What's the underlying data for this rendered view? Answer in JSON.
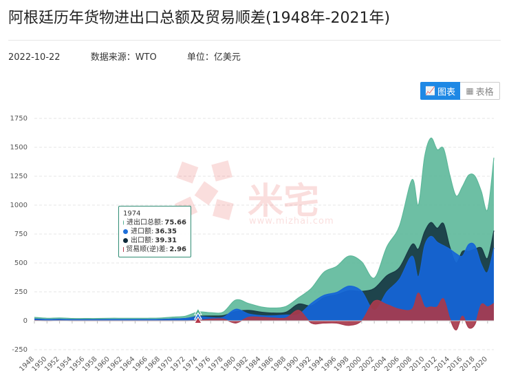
{
  "header": {
    "title": "阿根廷历年货物进出口总额及贸易顺差(1948年-2021年)",
    "date": "2022-10-22",
    "source": "数据来源：WTO",
    "unit": "单位：亿美元"
  },
  "toggle": {
    "chart_label": "图表",
    "table_label": "表格"
  },
  "watermark": {
    "text": "米宅",
    "url": "www.mizhai.com"
  },
  "tooltip": {
    "year": "1974",
    "rows": [
      {
        "label": "进出口总额",
        "value": "75.66",
        "color": "#4cae8e"
      },
      {
        "label": "进口额",
        "value": "36.35",
        "color": "#1e6fd9"
      },
      {
        "label": "出口额",
        "value": "39.31",
        "color": "#0f2a3a"
      },
      {
        "label": "贸易顺(逆)差",
        "value": "2.96",
        "color": "#b5384a"
      }
    ]
  },
  "colors": {
    "total": "#5db89a",
    "imports": "#1565d8",
    "exports": "#183a44",
    "balance": "#a83a4c"
  },
  "chart_data": {
    "type": "area",
    "title": "阿根廷历年货物进出口总额及贸易顺差(1948年-2021年)",
    "ylim": [
      -250,
      1750
    ],
    "yticks": [
      -250,
      0,
      250,
      500,
      750,
      1000,
      1250,
      1500,
      1750
    ],
    "xlabels": [
      "1948",
      "1950",
      "1952",
      "1954",
      "1956",
      "1958",
      "1960",
      "1962",
      "1964",
      "1966",
      "1968",
      "1970",
      "1972",
      "1974",
      "1976",
      "1978",
      "1980",
      "1982",
      "1984",
      "1986",
      "1988",
      "1990",
      "1992",
      "1994",
      "1996",
      "1998",
      "2000",
      "2002",
      "2004",
      "2006",
      "2008",
      "2010",
      "2012",
      "2014",
      "2016",
      "2018",
      "2020"
    ],
    "x": [
      1948,
      1950,
      1952,
      1954,
      1956,
      1958,
      1960,
      1962,
      1964,
      1966,
      1968,
      1970,
      1972,
      1974,
      1976,
      1978,
      1980,
      1982,
      1984,
      1986,
      1988,
      1990,
      1992,
      1994,
      1996,
      1998,
      2000,
      2002,
      2004,
      2006,
      2008,
      2009,
      2010,
      2011,
      2012,
      2013,
      2014,
      2015,
      2016,
      2017,
      2018,
      2019,
      2020,
      2021
    ],
    "series": [
      {
        "name": "进出口总额",
        "values": [
          30,
          22,
          25,
          20,
          20,
          20,
          22,
          22,
          22,
          22,
          24,
          32,
          40,
          76,
          70,
          75,
          180,
          150,
          120,
          110,
          125,
          200,
          280,
          420,
          470,
          560,
          510,
          370,
          640,
          820,
          1220,
          1000,
          1420,
          1580,
          1480,
          1490,
          1260,
          1080,
          1160,
          1260,
          1250,
          1120,
          960,
          1410
        ]
      },
      {
        "name": "进口额",
        "values": [
          14,
          11,
          12,
          10,
          10,
          10,
          11,
          11,
          11,
          11,
          12,
          16,
          20,
          36,
          28,
          30,
          100,
          60,
          45,
          43,
          50,
          55,
          150,
          220,
          245,
          300,
          255,
          90,
          250,
          360,
          560,
          380,
          650,
          730,
          680,
          650,
          620,
          580,
          560,
          660,
          650,
          490,
          420,
          630
        ]
      },
      {
        "name": "出口额",
        "values": [
          16,
          11,
          13,
          10,
          10,
          10,
          11,
          11,
          11,
          11,
          12,
          16,
          20,
          39,
          42,
          45,
          80,
          90,
          75,
          67,
          75,
          145,
          130,
          200,
          225,
          260,
          255,
          280,
          390,
          460,
          660,
          620,
          770,
          850,
          800,
          840,
          640,
          500,
          600,
          600,
          620,
          630,
          540,
          780
        ]
      },
      {
        "name": "贸易顺(逆)差",
        "values": [
          2,
          0,
          1,
          0,
          0,
          0,
          0,
          0,
          0,
          0,
          0,
          0,
          0,
          3,
          14,
          15,
          -20,
          30,
          30,
          24,
          25,
          90,
          -20,
          -20,
          -20,
          -40,
          0,
          170,
          140,
          100,
          100,
          240,
          120,
          120,
          120,
          190,
          20,
          -80,
          40,
          -60,
          -30,
          140,
          120,
          150
        ]
      }
    ]
  }
}
